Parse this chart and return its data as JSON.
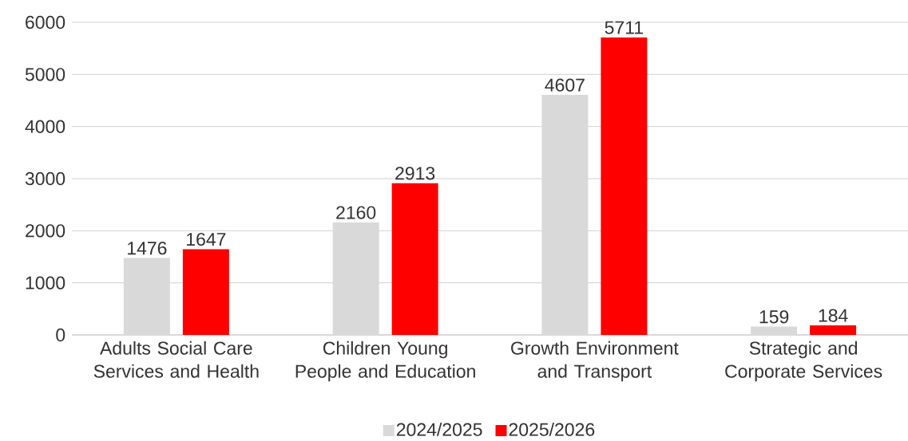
{
  "chart_data": {
    "type": "bar",
    "categories": [
      "Adults Social Care Services and Health",
      "Children Young People and Education",
      "Growth Environment and Transport",
      "Strategic and Corporate Services"
    ],
    "series": [
      {
        "name": "2024/2025",
        "color": "#d9d9d9",
        "values": [
          1476,
          2160,
          4607,
          159
        ]
      },
      {
        "name": "2025/2026",
        "color": "#ff0000",
        "values": [
          1647,
          2913,
          5711,
          184
        ]
      }
    ],
    "ylim": [
      0,
      6000
    ],
    "yticks": [
      0,
      1000,
      2000,
      3000,
      4000,
      5000,
      6000
    ],
    "grid": "y",
    "legend": "bottom",
    "data_labels": true
  }
}
